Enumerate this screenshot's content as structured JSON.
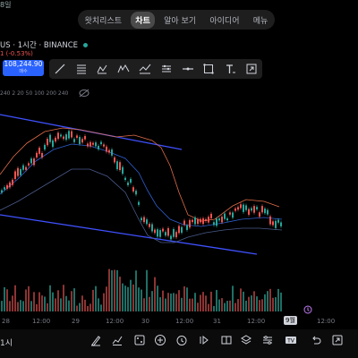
{
  "top_date": "8일",
  "tabs": [
    {
      "label": "왓치리스트",
      "active": false
    },
    {
      "label": "차트",
      "active": true
    },
    {
      "label": "알아 보기",
      "active": false
    },
    {
      "label": "아이디어",
      "active": false
    },
    {
      "label": "메뉴",
      "active": false
    }
  ],
  "symbol": {
    "text": "US · 1시간 · BINANCE"
  },
  "change_text": "1 (-0.53%)",
  "price_box": {
    "price": "108,244.90",
    "sub": "매수"
  },
  "indicator_text": "240 2 20 50 100 200 240",
  "x_axis": [
    {
      "label": "28"
    },
    {
      "label": "12:00"
    },
    {
      "label": "29"
    },
    {
      "label": "12:00"
    },
    {
      "label": "30"
    },
    {
      "label": "12:00"
    },
    {
      "label": "31"
    },
    {
      "label": "12:00"
    },
    {
      "label": "12:00"
    }
  ],
  "x_selected": "9월",
  "bottom_label": "1시",
  "colors": {
    "up": "#26a69a",
    "down": "#ef5350",
    "channel": "#3f51ff",
    "bb_upper": "#e06d4a",
    "bb_basis": "#2f5fd0",
    "accent": "#2962ff"
  },
  "toolbar_icons": [
    "trendline-icon",
    "fib-icon",
    "pattern-icon",
    "elliott-icon",
    "forecast-icon",
    "brush-icon",
    "horizontal-line-icon",
    "rectangle-icon",
    "text-icon",
    "measure-icon"
  ],
  "bottom_icons": [
    "brush-icon",
    "chart-icon",
    "indicator-icon",
    "add-icon",
    "alert-icon",
    "replay-icon",
    "layers-icon",
    "settings-icon",
    "tradingview-icon",
    "undo-icon",
    "fullscreen-icon"
  ]
}
